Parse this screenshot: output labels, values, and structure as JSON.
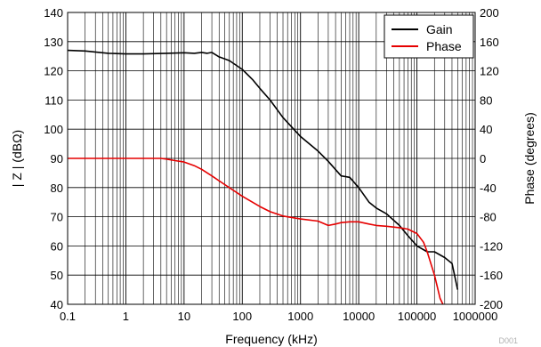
{
  "chart_data": {
    "type": "line",
    "title": "",
    "xlabel": "Frequency (kHz)",
    "ylabel_left": "| Z | (dBΩ)",
    "ylabel_right": "Phase (degrees)",
    "x_scale": "log",
    "xlim": [
      0.1,
      1000000
    ],
    "ylim_left": [
      40,
      140
    ],
    "ylim_right": [
      -200,
      200
    ],
    "grid": true,
    "legend_position": "top-right",
    "x_ticks": [
      "0.1",
      "1",
      "10",
      "100",
      "1000",
      "10000",
      "100000",
      "1000000"
    ],
    "y_left_ticks": [
      "40",
      "50",
      "60",
      "70",
      "80",
      "90",
      "100",
      "110",
      "120",
      "130",
      "140"
    ],
    "y_right_ticks": [
      "-200",
      "-160",
      "-120",
      "-80",
      "-40",
      "0",
      "40",
      "80",
      "120",
      "160",
      "200"
    ],
    "figure_id": "D001",
    "series": [
      {
        "name": "Gain",
        "axis": "left",
        "color": "#000000",
        "x": [
          0.1,
          0.2,
          0.5,
          1,
          2,
          5,
          10,
          15,
          20,
          25,
          30,
          40,
          60,
          100,
          150,
          200,
          300,
          500,
          1000,
          2000,
          3000,
          5000,
          7000,
          10000,
          15000,
          20000,
          30000,
          50000,
          70000,
          100000,
          150000,
          200000,
          300000,
          400000,
          500000
        ],
        "values": [
          127,
          126.8,
          126,
          125.8,
          125.8,
          126,
          126.2,
          126,
          126.3,
          126,
          126.3,
          124.8,
          123.5,
          120.5,
          117,
          114,
          110,
          104,
          97.5,
          92.5,
          89,
          84,
          83.5,
          80,
          75,
          73,
          71,
          67,
          63.5,
          60,
          58,
          58,
          56,
          54,
          45
        ]
      },
      {
        "name": "Phase",
        "axis": "right",
        "color": "#e60000",
        "x": [
          0.1,
          0.5,
          1,
          2,
          3,
          4,
          5,
          7,
          10,
          15,
          20,
          30,
          50,
          100,
          200,
          300,
          500,
          1000,
          2000,
          3000,
          4000,
          5000,
          7000,
          10000,
          15000,
          20000,
          30000,
          50000,
          70000,
          100000,
          130000,
          150000,
          200000,
          250000,
          280000
        ],
        "values": [
          0,
          0,
          0,
          0,
          0,
          0,
          -1,
          -3,
          -5,
          -10,
          -15,
          -24,
          -36,
          -52,
          -66,
          -73,
          -79,
          -83,
          -86,
          -92,
          -90,
          -88,
          -87,
          -87,
          -90,
          -92,
          -93,
          -95,
          -97,
          -103,
          -115,
          -128,
          -160,
          -192,
          -200
        ]
      }
    ]
  }
}
